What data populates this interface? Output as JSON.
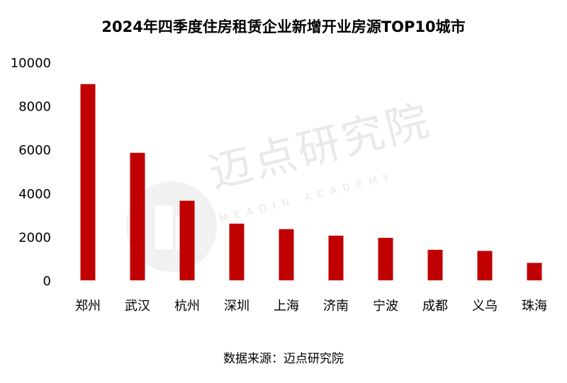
{
  "chart_data": {
    "type": "bar",
    "title": "2024年四季度住房租赁企业新增开业房源TOP10城市",
    "categories": [
      "郑州",
      "武汉",
      "杭州",
      "深圳",
      "上海",
      "济南",
      "宁波",
      "成都",
      "义乌",
      "珠海"
    ],
    "values": [
      9000,
      5850,
      3650,
      2600,
      2350,
      2050,
      1950,
      1400,
      1350,
      800
    ],
    "ylim": [
      0,
      10000
    ],
    "yticks": [
      0,
      2000,
      4000,
      6000,
      8000,
      10000
    ],
    "xlabel": "",
    "ylabel": "",
    "grid": false,
    "bar_color": "#c00000"
  },
  "source": "数据来源：迈点研究院",
  "watermark": {
    "logo_text": "迈点研究院",
    "sub_text": "MEADIN ACADEMY"
  }
}
